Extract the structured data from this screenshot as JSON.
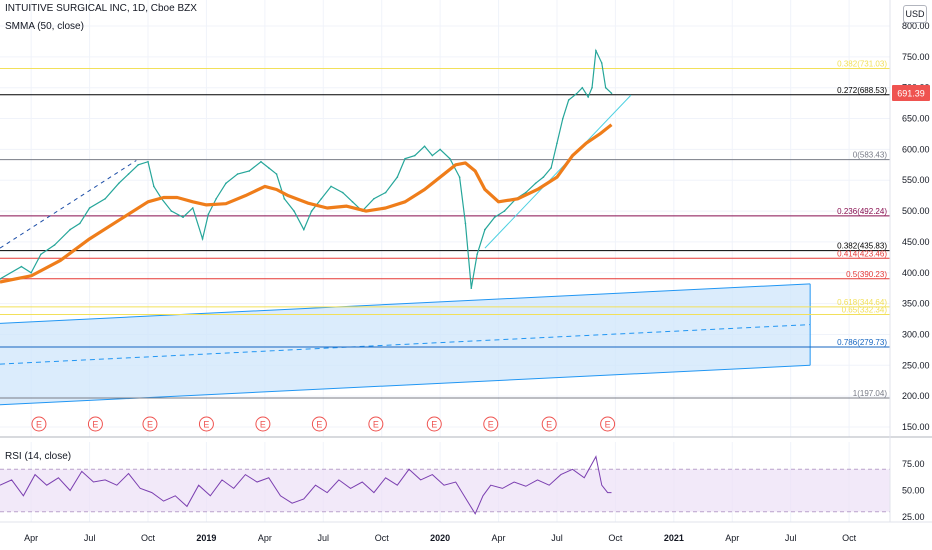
{
  "chart_data": {
    "type": "line",
    "title": "INTUITIVE SURGICAL INC, 1D, Cboe BZX",
    "price_unit": "USD",
    "indicator_label": "SMMA (50, close)",
    "rsi_label": "RSI (14, close)",
    "last_price": "691.39",
    "y_ticks": [
      "800.00",
      "750.00",
      "700.00",
      "650.00",
      "600.00",
      "550.00",
      "500.00",
      "450.00",
      "400.00",
      "350.00",
      "300.00",
      "250.00",
      "200.00",
      "150.00"
    ],
    "y_tick_values": [
      800,
      750,
      700,
      650,
      600,
      550,
      500,
      450,
      400,
      350,
      300,
      250,
      200,
      150
    ],
    "ylim": [
      150,
      800
    ],
    "rsi_ticks": [
      "75.00",
      "50.00",
      "25.00"
    ],
    "rsi_tick_values": [
      75,
      50,
      25
    ],
    "x_ticks": [
      "Apr",
      "Jul",
      "Oct",
      "2019",
      "Apr",
      "Jul",
      "Oct",
      "2020",
      "Apr",
      "Jul",
      "Oct",
      "2021",
      "Apr",
      "Jul",
      "Oct"
    ],
    "x_tick_months": [
      3,
      6,
      9,
      12,
      15,
      18,
      21,
      24,
      27,
      30,
      33,
      36,
      39,
      42,
      45
    ],
    "x_range_months": [
      1.4,
      47.1
    ],
    "fib_levels": [
      {
        "label": "0.382(731.03)",
        "value": 731.03,
        "color": "#f2e05a"
      },
      {
        "label": "0.272(688.53)",
        "value": 688.53,
        "color": "#000000"
      },
      {
        "label": "0(583.43)",
        "value": 583.43,
        "color": "#787b86"
      },
      {
        "label": "0.236(492.24)",
        "value": 492.24,
        "color": "#880e4f"
      },
      {
        "label": "0.382(435.83)",
        "value": 435.83,
        "color": "#000000"
      },
      {
        "label": "0.414(423.46)",
        "value": 423.46,
        "color": "#e53935"
      },
      {
        "label": "0.5(390.23)",
        "value": 390.23,
        "color": "#e53935"
      },
      {
        "label": "0.618(344.64)",
        "value": 344.64,
        "color": "#f2e05a"
      },
      {
        "label": "0.65(332.34)",
        "value": 332.34,
        "color": "#f2e05a"
      },
      {
        "label": "0.786(279.73)",
        "value": 279.73,
        "color": "#1565c0"
      },
      {
        "label": "1(197.04)",
        "value": 197.04,
        "color": "#787b86"
      }
    ],
    "price_series": {
      "name": "",
      "x_months": [
        1.4,
        2.5,
        3.0,
        3.5,
        4.2,
        5.0,
        5.5,
        6.0,
        6.8,
        7.5,
        8.0,
        8.5,
        9.0,
        9.3,
        9.7,
        10.2,
        10.8,
        11.3,
        11.8,
        12.1,
        12.5,
        13.0,
        13.6,
        14.2,
        14.8,
        15.2,
        15.6,
        16.0,
        16.5,
        17.0,
        17.4,
        17.9,
        18.4,
        19.0,
        19.5,
        20.0,
        20.6,
        21.2,
        21.8,
        22.2,
        22.7,
        23.2,
        23.6,
        24.0,
        24.5,
        25.0,
        25.3,
        25.6,
        25.9,
        26.3,
        26.8,
        27.3,
        27.9,
        28.4,
        28.9,
        29.3,
        29.7,
        30.0,
        30.3,
        30.6,
        31.0,
        31.3,
        31.6,
        31.8,
        32.0,
        32.3,
        32.5,
        32.8
      ],
      "y_values": [
        390,
        410,
        400,
        430,
        445,
        470,
        480,
        505,
        520,
        545,
        560,
        575,
        580,
        540,
        520,
        500,
        490,
        505,
        455,
        495,
        520,
        545,
        560,
        565,
        580,
        570,
        560,
        520,
        500,
        470,
        500,
        520,
        540,
        530,
        515,
        500,
        520,
        530,
        555,
        585,
        590,
        605,
        590,
        600,
        585,
        555,
        480,
        375,
        430,
        470,
        490,
        500,
        520,
        530,
        545,
        555,
        570,
        610,
        650,
        680,
        690,
        700,
        685,
        700,
        760,
        740,
        700,
        691
      ]
    },
    "smma_series": {
      "name": "",
      "x_months": [
        1.4,
        3.0,
        4.5,
        6.0,
        7.5,
        9.0,
        9.8,
        10.5,
        11.3,
        12.0,
        13.0,
        14.0,
        15.0,
        15.6,
        16.2,
        17.2,
        18.2,
        19.2,
        20.2,
        21.2,
        22.2,
        23.2,
        24.2,
        24.8,
        25.3,
        25.8,
        26.3,
        27.0,
        28.0,
        29.0,
        30.0,
        30.8,
        31.5,
        32.2,
        32.8
      ],
      "y_values": [
        385,
        395,
        420,
        455,
        485,
        515,
        522,
        522,
        515,
        510,
        512,
        525,
        540,
        535,
        525,
        513,
        505,
        508,
        500,
        505,
        515,
        535,
        560,
        575,
        578,
        565,
        535,
        515,
        520,
        535,
        555,
        590,
        610,
        625,
        640
      ]
    },
    "rsi_series": {
      "name": "",
      "x_months": [
        1.4,
        2.0,
        2.6,
        3.2,
        3.8,
        4.4,
        5.0,
        5.6,
        6.2,
        6.8,
        7.4,
        8.0,
        8.6,
        9.2,
        9.8,
        10.4,
        11.0,
        11.6,
        12.2,
        12.8,
        13.4,
        14.0,
        14.6,
        15.2,
        15.8,
        16.4,
        17.0,
        17.6,
        18.2,
        18.8,
        19.4,
        20.0,
        20.6,
        21.2,
        21.8,
        22.4,
        23.0,
        23.6,
        24.2,
        24.8,
        25.4,
        25.8,
        26.2,
        26.6,
        27.2,
        27.8,
        28.4,
        29.0,
        29.6,
        30.2,
        30.8,
        31.4,
        32.0,
        32.3,
        32.6,
        32.8
      ],
      "y_values": [
        55,
        60,
        45,
        65,
        55,
        62,
        50,
        68,
        58,
        60,
        55,
        66,
        52,
        48,
        40,
        45,
        35,
        55,
        45,
        60,
        52,
        65,
        58,
        62,
        45,
        38,
        42,
        55,
        48,
        60,
        52,
        58,
        48,
        62,
        55,
        70,
        60,
        65,
        55,
        58,
        40,
        28,
        45,
        55,
        52,
        58,
        54,
        60,
        55,
        65,
        70,
        62,
        82,
        55,
        48,
        48
      ]
    },
    "trendlines": [
      {
        "x_months": [
          1.4,
          8.4
        ],
        "y_values": [
          440,
          582
        ],
        "style": "dashed",
        "color": "#1e4fa8"
      },
      {
        "x_months": [
          26.3,
          33.8
        ],
        "y_values": [
          440,
          688
        ],
        "style": "solid",
        "color": "#4dd0e1"
      }
    ],
    "channel": {
      "upper": {
        "x_months": [
          1.4,
          43.0
        ],
        "y_values": [
          318,
          382
        ]
      },
      "middle": {
        "x_months": [
          1.4,
          43.0
        ],
        "y_values": [
          252,
          316
        ]
      },
      "lower": {
        "x_months": [
          1.4,
          43.0
        ],
        "y_values": [
          186,
          250
        ]
      }
    },
    "event_markers": {
      "label": "E",
      "x_months": [
        3.4,
        6.3,
        9.1,
        12.0,
        14.9,
        17.8,
        20.7,
        23.7,
        26.6,
        29.6,
        32.6
      ]
    },
    "grid": true,
    "legend": "none"
  },
  "colors": {
    "price": "#26a69a",
    "smma": "#ef7d1a",
    "rsi": "#7b3fb0",
    "channel_fill": "#cfe6fb",
    "channel_line": "#2196f3",
    "last_price_bg": "#ef5350"
  }
}
